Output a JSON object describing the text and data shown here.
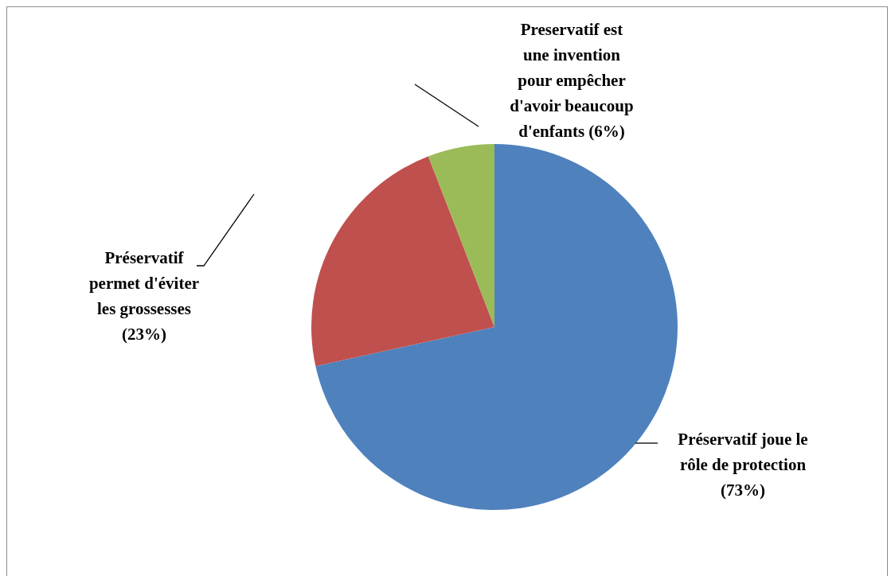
{
  "chart_data": {
    "type": "pie",
    "categories": [
      "Préservatif joue le rôle de protection",
      "Préservatif permet d'éviter les grossesses",
      "Preservatif est une invention pour empêcher d'avoir beaucoup d'enfants"
    ],
    "values": [
      73,
      23,
      6
    ],
    "value_labels": [
      "(73%)",
      "(23%)",
      "(6%)"
    ],
    "colors": [
      "#4f81bd",
      "#c0504d",
      "#9bbb59"
    ],
    "legend": false
  }
}
